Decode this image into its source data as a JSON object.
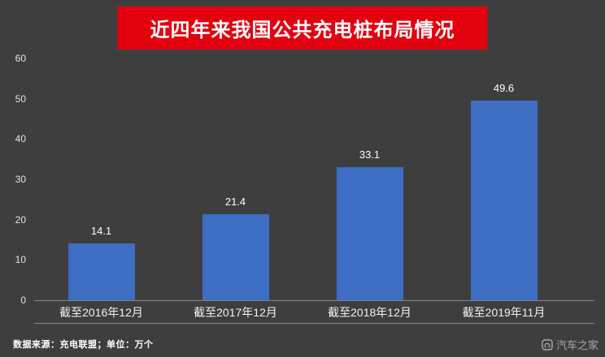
{
  "chart_data": {
    "type": "bar",
    "title": "近四年来我国公共充电桩布局情况",
    "categories": [
      "截至2016年12月",
      "截至2017年12月",
      "截至2018年12月",
      "截至2019年11月"
    ],
    "values": [
      14.1,
      21.4,
      33.1,
      49.6
    ],
    "ylim": [
      0,
      60
    ],
    "yticks": [
      0,
      10,
      20,
      30,
      40,
      50,
      60
    ],
    "grid": false,
    "legend": "none",
    "bar_color": "#3d6ec3",
    "background_color": "#3e3e3e",
    "title_banner_color": "#e3000f",
    "xlabel": "",
    "ylabel": ""
  },
  "footnote": "数据来源：充电联盟；单位：万个",
  "watermark": "汽车之家"
}
